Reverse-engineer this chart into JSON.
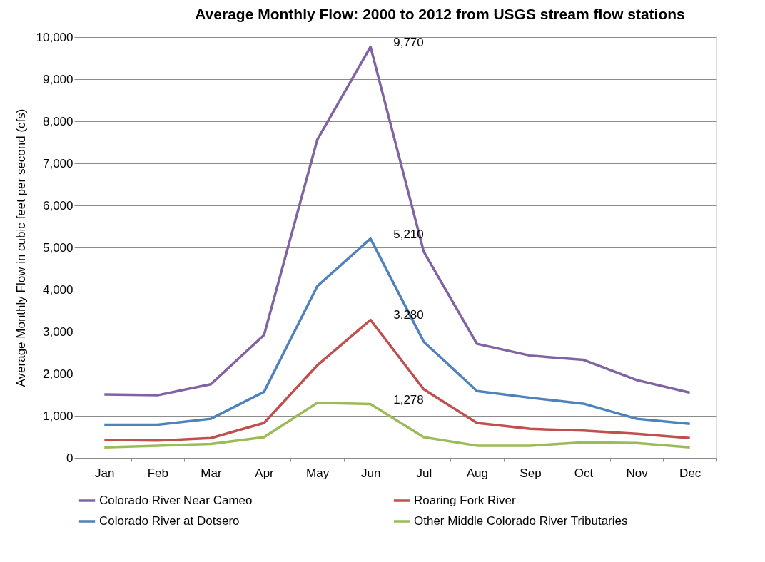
{
  "chart_data": {
    "type": "line",
    "title": "Average Monthly Flow: 2000 to 2012 from USGS stream flow stations",
    "ylabel": "Average Monthly Flow in cubic feet  per second (cfs)",
    "categories": [
      "Jan",
      "Feb",
      "Mar",
      "Apr",
      "May",
      "Jun",
      "Jul",
      "Aug",
      "Sep",
      "Oct",
      "Nov",
      "Dec"
    ],
    "series": [
      {
        "name": "Colorado River Near Cameo",
        "color": "#8064a2",
        "values": [
          1510,
          1490,
          1750,
          2920,
          7560,
          9770,
          4900,
          2710,
          2430,
          2330,
          1850,
          1550
        ]
      },
      {
        "name": "Roaring Fork River",
        "color": "#c0504d",
        "values": [
          430,
          410,
          470,
          830,
          2200,
          3280,
          1630,
          830,
          690,
          650,
          570,
          470
        ]
      },
      {
        "name": "Colorado River at Dotsero",
        "color": "#4f81bd",
        "values": [
          790,
          790,
          930,
          1570,
          4080,
          5210,
          2760,
          1590,
          1430,
          1290,
          930,
          810
        ]
      },
      {
        "name": "Other Middle Colorado River Tributaries",
        "color": "#9bbb59",
        "values": [
          250,
          290,
          330,
          490,
          1310,
          1278,
          490,
          290,
          290,
          370,
          350,
          250
        ]
      }
    ],
    "ylim": [
      0,
      10000
    ],
    "yticks": [
      0,
      {
        "value": 1000,
        "label": "1,000"
      },
      {
        "value": 2000,
        "label": "2,000"
      },
      {
        "value": 3000,
        "label": "3,000"
      },
      {
        "value": 4000,
        "label": "4,000"
      },
      {
        "value": 5000,
        "label": "5,000"
      },
      {
        "value": 6000,
        "label": "6,000"
      },
      {
        "value": 7000,
        "label": "7,000"
      },
      {
        "value": 8000,
        "label": "8,000"
      },
      {
        "value": 9000,
        "label": "9,000"
      },
      {
        "value": 10000,
        "label": "10,000"
      }
    ],
    "annotations": [
      {
        "text": "9,770",
        "x": "Jun",
        "y": 9770
      },
      {
        "text": "5,210",
        "x": "Jun",
        "y": 5210
      },
      {
        "text": "3,280",
        "x": "Jun",
        "y": 3280
      },
      {
        "text": "1,278",
        "x": "Jun",
        "y": 1278
      }
    ],
    "grid": "y",
    "legend": "bottom",
    "marker": "none",
    "line_style": "solid"
  }
}
